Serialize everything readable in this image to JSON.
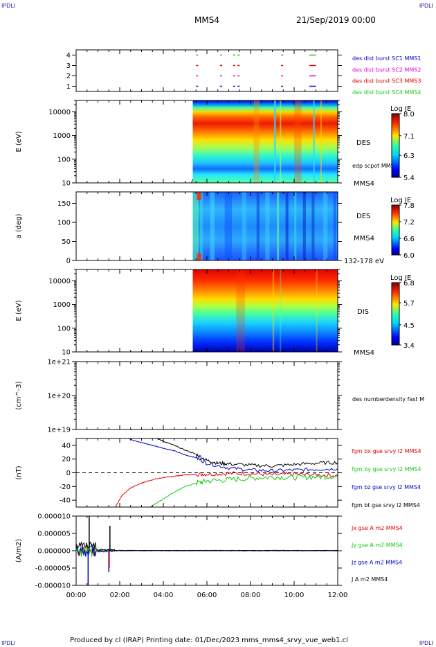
{
  "corners": {
    "tl": "IPDLI",
    "tr": "IPDLI",
    "bl": "IPDLI",
    "br": "IPDLI"
  },
  "header": {
    "mission": "MMS4",
    "date": "21/Sep/2019 00:00"
  },
  "footer": {
    "text": "Produced by cl (IRAP)   Printing date: 01/Dec/2023   mms_mms4_srvy_vue_web1.cl"
  },
  "colors": {
    "black": "#000000",
    "red": "#dd0000",
    "green": "#11cc11",
    "blue": "#0000cc",
    "magenta": "#dd00dd"
  },
  "chart_data": [
    {
      "type": "scatter",
      "name": "burst-availability",
      "ytick_labels": [
        "1",
        "2",
        "3",
        "4"
      ],
      "ylim": [
        0.5,
        4.5
      ],
      "labels": [
        {
          "text": "des dist burst SC1 MMS1",
          "color": "#0000cc"
        },
        {
          "text": "des dist burst SC2 MMS2",
          "color": "#dd00dd"
        },
        {
          "text": "des dist burst SC3 MMS3",
          "color": "#dd0000"
        },
        {
          "text": "des dist burst SC4 MMS4",
          "color": "#11cc11"
        }
      ],
      "intervals_hours": [
        [
          5.5,
          5.6
        ],
        [
          6.6,
          6.7
        ],
        [
          7.2,
          7.3
        ],
        [
          7.4,
          7.5
        ],
        [
          9.4,
          9.5
        ],
        [
          10.7,
          11.0
        ]
      ]
    },
    {
      "type": "heatmap",
      "name": "des-energy",
      "ylabel": "E (eV)",
      "yscale": "log",
      "ylim": [
        10,
        30000
      ],
      "ytick_labels": [
        "10",
        "100",
        "1000",
        "10000"
      ],
      "data_start_hour": 5.35,
      "labels": [
        "DES",
        "edp scpot MMS4",
        "MMS4"
      ],
      "colorbar": {
        "title": "Log JE",
        "ticks": [
          "8.0",
          "7.1",
          "6.3",
          "5.4"
        ],
        "range": [
          5.4,
          8.0
        ]
      }
    },
    {
      "type": "heatmap",
      "name": "des-pitch-angle",
      "ylabel": "a (deg)",
      "ylim": [
        0,
        180
      ],
      "ytick_labels": [
        "0",
        "50",
        "100",
        "150"
      ],
      "data_start_hour": 5.35,
      "labels": [
        "DES",
        "MMS4",
        "132-178 eV"
      ],
      "colorbar": {
        "title": "Log JE",
        "ticks": [
          "7.8",
          "7.2",
          "6.6",
          "6.0"
        ],
        "range": [
          6.0,
          7.8
        ]
      }
    },
    {
      "type": "heatmap",
      "name": "dis-energy",
      "ylabel": "E (eV)",
      "yscale": "log",
      "ylim": [
        10,
        30000
      ],
      "ytick_labels": [
        "10",
        "100",
        "1000",
        "10000"
      ],
      "data_start_hour": 5.35,
      "labels": [
        "DIS",
        "MMS4"
      ],
      "colorbar": {
        "title": "Log JE",
        "ticks": [
          "6.8",
          "5.7",
          "4.5",
          "3.4"
        ],
        "range": [
          3.4,
          6.8
        ]
      }
    },
    {
      "type": "line",
      "name": "des-number-density",
      "ylabel": "(cm^-3)",
      "yscale": "log",
      "ylim": [
        1e+19,
        1e+21
      ],
      "ytick_labels": [
        "1e+19",
        "1e+20",
        "1e+21"
      ],
      "labels": [
        "des numberdensity fast M"
      ]
    },
    {
      "type": "line",
      "name": "fgm-field",
      "ylabel": "(nT)",
      "ylim": [
        -50,
        50
      ],
      "ytick_labels": [
        "-40",
        "-20",
        "0",
        "20",
        "40"
      ],
      "series": [
        {
          "name": "fgm bx gse srvy l2 MMS4",
          "color": "#dd0000",
          "x": [
            1.8,
            2.1,
            2.5,
            3.0,
            3.5,
            4.0,
            4.5,
            5.0,
            5.5,
            6.0,
            7.0,
            8.0,
            9.0,
            10.0,
            11.0,
            12.0
          ],
          "y": [
            -50,
            -33,
            -22,
            -15,
            -10,
            -7,
            -5,
            -3,
            -2,
            -2,
            -1,
            -1,
            -3,
            -2,
            -3,
            -4
          ]
        },
        {
          "name": "fgm by gse srvy l2 MMS4",
          "color": "#11cc11",
          "x": [
            3.4,
            4.0,
            4.5,
            5.0,
            5.5,
            6.0,
            7.0,
            8.0,
            9.0,
            10.0,
            11.0,
            12.0
          ],
          "y": [
            -50,
            -38,
            -28,
            -20,
            -15,
            -12,
            -10,
            -8,
            -6,
            -7,
            -6,
            -5
          ]
        },
        {
          "name": "fgm bz gse srvy l2 MMS4",
          "color": "#0000cc",
          "x": [
            2.4,
            3.0,
            3.5,
            4.0,
            4.5,
            5.0,
            5.5,
            6.0,
            7.0,
            8.0,
            9.0,
            10.0,
            11.0,
            12.0
          ],
          "y": [
            50,
            44,
            40,
            36,
            32,
            26,
            22,
            14,
            7,
            4,
            3,
            4,
            5,
            6
          ]
        },
        {
          "name": "fgm bt gse srvy l2 MMS4",
          "color": "#000000",
          "x": [
            3.7,
            4.0,
            4.5,
            5.0,
            5.5,
            6.0,
            6.5,
            7.0,
            8.0,
            9.0,
            10.0,
            11.0,
            12.0
          ],
          "y": [
            50,
            46,
            40,
            33,
            27,
            18,
            14,
            13,
            11,
            10,
            12,
            14,
            15
          ]
        }
      ]
    },
    {
      "type": "line",
      "name": "current-density",
      "ylabel": "(A/m2)",
      "ylim": [
        -1e-05,
        1e-05
      ],
      "ytick_labels": [
        "-0.000010",
        "-0.000005",
        "0.000000",
        "0.000005",
        "0.000010"
      ],
      "series": [
        {
          "name": "Jx gse A m2 MMS4",
          "color": "#dd0000"
        },
        {
          "name": "Jy gse A m2 MMS4",
          "color": "#11cc11"
        },
        {
          "name": "Jz gse A m2 MMS4",
          "color": "#0000cc"
        },
        {
          "name": "J A m2 MMS4",
          "color": "#000000"
        }
      ],
      "spikes": [
        {
          "series": 2,
          "x": 0.55,
          "y": -1.05e-05
        },
        {
          "series": 3,
          "x": 0.6,
          "y": 1.01e-05
        },
        {
          "series": 2,
          "x": 1.5,
          "y": -6.2e-06
        },
        {
          "series": 3,
          "x": 1.55,
          "y": 7.2e-06
        },
        {
          "series": 0,
          "x": 1.52,
          "y": -5e-06
        }
      ]
    }
  ],
  "xaxis": {
    "range_hours": [
      0,
      12
    ],
    "tick_labels": [
      "00:00",
      "02:00",
      "04:00",
      "06:00",
      "08:00",
      "10:00",
      "12:00"
    ]
  }
}
